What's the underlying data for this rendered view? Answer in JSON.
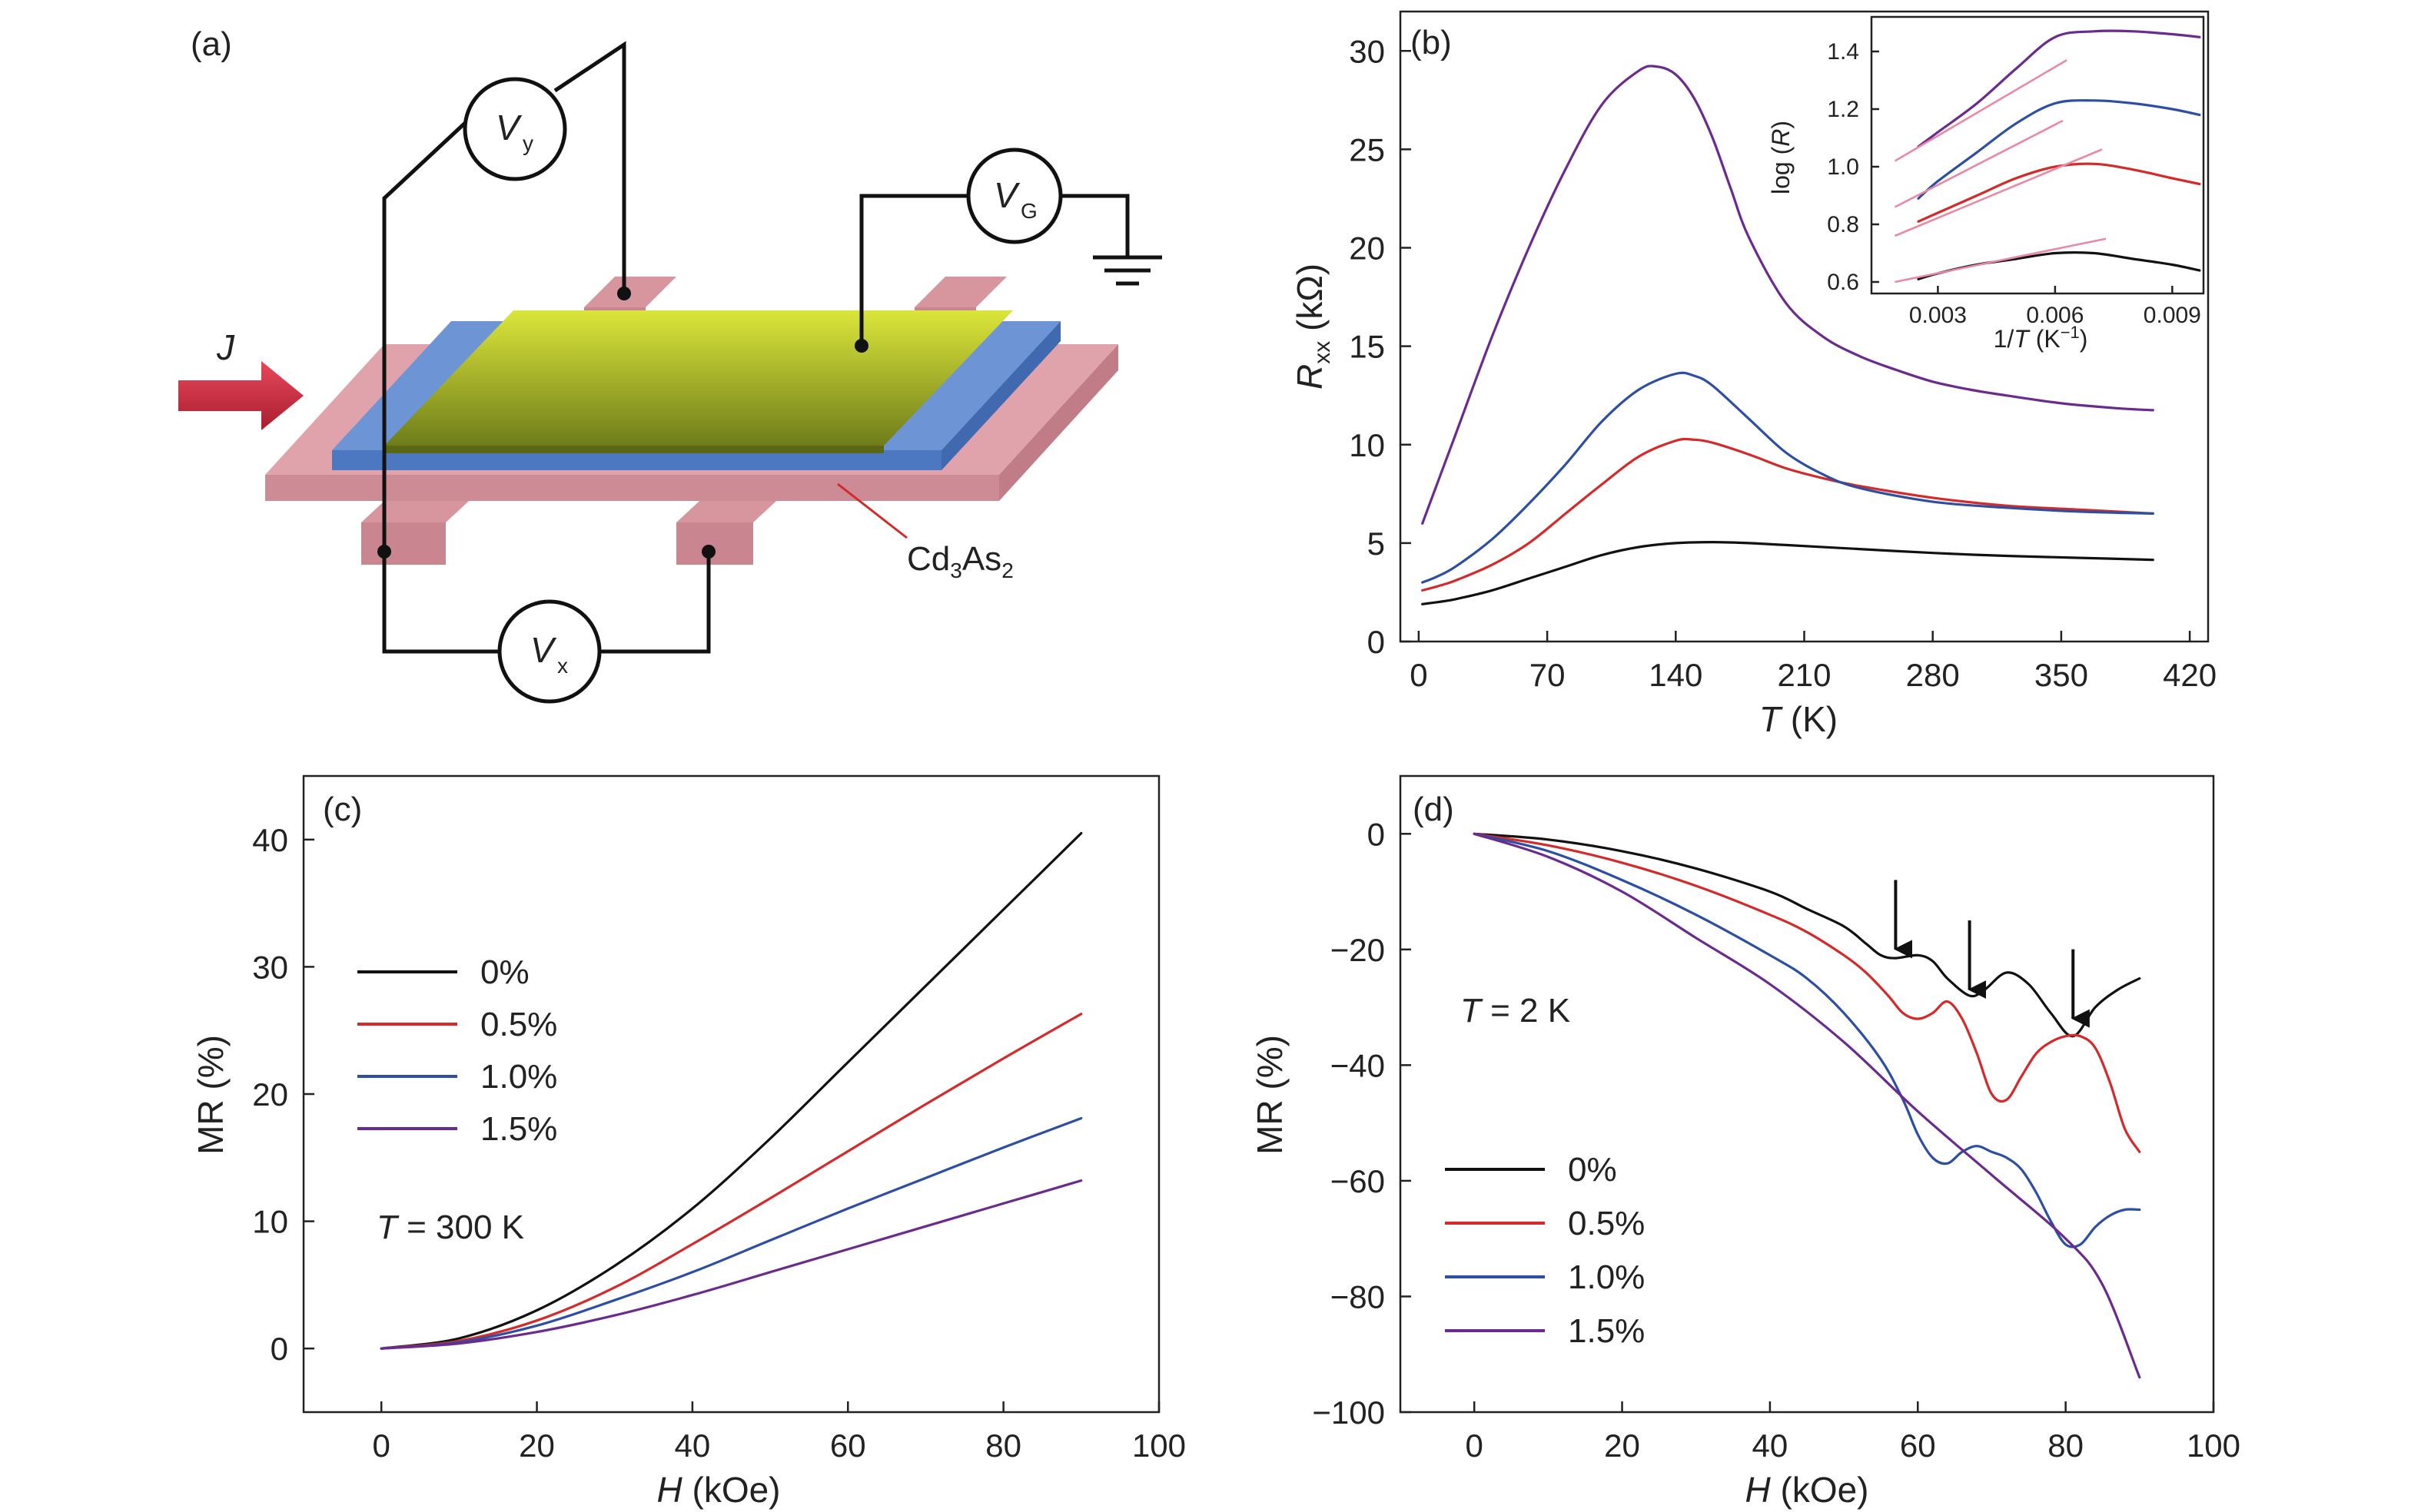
{
  "colors": {
    "s0": "#111111",
    "s05": "#d42a2a",
    "s10": "#2d4fa3",
    "s15": "#6a2a8e",
    "fit": "#e98aa5"
  },
  "schematic": {
    "label": "(a)",
    "current": {
      "name": "J"
    },
    "vy": {
      "name": "V",
      "sub": "y"
    },
    "vg": {
      "name": "V",
      "sub": "G"
    },
    "vx": {
      "name": "V",
      "sub": "x"
    },
    "material": {
      "a": "Cd",
      "n1": "3",
      "b": "As",
      "n2": "2"
    }
  },
  "chart_data": [
    {
      "panel": "(b)",
      "type": "line",
      "xlabel": {
        "sym": "T",
        "unit": " (K)"
      },
      "ylabel": {
        "sym": "R",
        "sub": "xx",
        "unit": " (kΩ)"
      },
      "xlim": [
        -10,
        430
      ],
      "ylim": [
        0,
        32
      ],
      "xticks": [
        0,
        70,
        140,
        210,
        280,
        350,
        420
      ],
      "yticks": [
        0,
        5,
        10,
        15,
        20,
        25,
        30
      ],
      "series": [
        {
          "key": "s0",
          "x": [
            2,
            10,
            20,
            40,
            60,
            80,
            100,
            120,
            140,
            160,
            180,
            200,
            240,
            280,
            320,
            360,
            400
          ],
          "y": [
            1.9,
            2.0,
            2.15,
            2.6,
            3.2,
            3.8,
            4.4,
            4.8,
            5.0,
            5.05,
            5.0,
            4.9,
            4.7,
            4.5,
            4.35,
            4.25,
            4.15
          ]
        },
        {
          "key": "s05",
          "x": [
            2,
            10,
            20,
            40,
            60,
            80,
            100,
            120,
            140,
            150,
            160,
            180,
            200,
            220,
            240,
            280,
            320,
            360,
            400
          ],
          "y": [
            2.6,
            2.8,
            3.1,
            3.9,
            5.0,
            6.5,
            8.0,
            9.4,
            10.2,
            10.25,
            10.1,
            9.5,
            8.8,
            8.3,
            7.9,
            7.3,
            6.9,
            6.7,
            6.5
          ]
        },
        {
          "key": "s10",
          "x": [
            2,
            10,
            20,
            40,
            60,
            80,
            100,
            120,
            140,
            150,
            160,
            180,
            200,
            220,
            240,
            280,
            320,
            360,
            400
          ],
          "y": [
            3.0,
            3.3,
            3.8,
            5.2,
            7.0,
            9.0,
            11.2,
            12.8,
            13.6,
            13.5,
            13.0,
            11.3,
            9.6,
            8.5,
            7.8,
            7.1,
            6.8,
            6.6,
            6.5
          ]
        },
        {
          "key": "s15",
          "x": [
            2,
            10,
            20,
            40,
            60,
            80,
            100,
            120,
            130,
            140,
            150,
            160,
            170,
            180,
            200,
            220,
            240,
            260,
            280,
            300,
            320,
            350,
            380,
            400
          ],
          "y": [
            6.0,
            8.0,
            10.5,
            15.5,
            20.0,
            24.0,
            27.3,
            29.0,
            29.2,
            28.8,
            27.6,
            25.6,
            23.0,
            20.5,
            17.2,
            15.5,
            14.5,
            13.8,
            13.2,
            12.8,
            12.5,
            12.1,
            11.85,
            11.75
          ]
        }
      ],
      "inset": {
        "xlabel": {
          "pre": "1/",
          "sym": "T",
          "unit": " (K",
          "sup": "−1",
          "post": ")"
        },
        "ylabel": {
          "pre": "log (",
          "sym": "R",
          "post": ")"
        },
        "xlim": [
          0.0013,
          0.0098
        ],
        "ylim": [
          0.56,
          1.52
        ],
        "xticks": [
          "0.003",
          "0.006",
          "0.009"
        ],
        "xtickvals": [
          0.003,
          0.006,
          0.009
        ],
        "yticks": [
          "0.6",
          "0.8",
          "1.0",
          "1.2",
          "1.4"
        ],
        "ytickvals": [
          0.6,
          0.8,
          1.0,
          1.2,
          1.4
        ],
        "series": [
          {
            "key": "s0",
            "x": [
              0.0025,
              0.003,
              0.004,
              0.005,
              0.006,
              0.007,
              0.008,
              0.009,
              0.0097
            ],
            "y": [
              0.61,
              0.63,
              0.66,
              0.68,
              0.7,
              0.7,
              0.68,
              0.66,
              0.64
            ]
          },
          {
            "key": "s05",
            "x": [
              0.0025,
              0.003,
              0.004,
              0.005,
              0.006,
              0.007,
              0.008,
              0.009,
              0.0097
            ],
            "y": [
              0.81,
              0.84,
              0.9,
              0.96,
              1.0,
              1.01,
              0.99,
              0.96,
              0.94
            ]
          },
          {
            "key": "s10",
            "x": [
              0.0025,
              0.003,
              0.004,
              0.005,
              0.006,
              0.007,
              0.008,
              0.009,
              0.0097
            ],
            "y": [
              0.89,
              0.95,
              1.05,
              1.15,
              1.22,
              1.23,
              1.22,
              1.2,
              1.18
            ]
          },
          {
            "key": "s15",
            "x": [
              0.0025,
              0.003,
              0.004,
              0.005,
              0.006,
              0.007,
              0.008,
              0.009,
              0.0097
            ],
            "y": [
              1.07,
              1.12,
              1.22,
              1.34,
              1.45,
              1.47,
              1.47,
              1.46,
              1.45
            ]
          }
        ],
        "fits": [
          {
            "x": [
              0.0019,
              0.0073
            ],
            "y": [
              0.6,
              0.75
            ]
          },
          {
            "x": [
              0.0019,
              0.0072
            ],
            "y": [
              0.76,
              1.06
            ]
          },
          {
            "x": [
              0.0019,
              0.0062
            ],
            "y": [
              0.86,
              1.16
            ]
          },
          {
            "x": [
              0.0019,
              0.0063
            ],
            "y": [
              1.02,
              1.37
            ]
          }
        ]
      }
    },
    {
      "panel": "(c)",
      "type": "line",
      "xlabel": {
        "sym": "H",
        "unit": " (kOe)"
      },
      "ylabel": {
        "text": "MR (%)"
      },
      "annotation": {
        "sym": "T",
        "rest": " = 300 K"
      },
      "xlim": [
        -10,
        100
      ],
      "ylim": [
        -5,
        45
      ],
      "xticks": [
        0,
        20,
        40,
        60,
        80,
        100
      ],
      "yticks": [
        0,
        10,
        20,
        30,
        40
      ],
      "legend": [
        "0%",
        "0.5%",
        "1.0%",
        "1.5%"
      ],
      "series": [
        {
          "key": "s0",
          "x": [
            0,
            10,
            20,
            30,
            40,
            50,
            60,
            70,
            80,
            90
          ],
          "y": [
            0,
            0.8,
            3.0,
            6.5,
            11.0,
            16.5,
            22.5,
            28.5,
            34.5,
            40.5
          ]
        },
        {
          "key": "s05",
          "x": [
            0,
            10,
            20,
            30,
            40,
            50,
            60,
            70,
            80,
            90
          ],
          "y": [
            0,
            0.6,
            2.2,
            4.8,
            8.2,
            11.8,
            15.5,
            19.2,
            22.8,
            26.3
          ]
        },
        {
          "key": "s10",
          "x": [
            0,
            10,
            20,
            30,
            40,
            50,
            60,
            70,
            80,
            90
          ],
          "y": [
            0,
            0.5,
            1.8,
            3.8,
            6.0,
            8.5,
            11.0,
            13.4,
            15.8,
            18.1
          ]
        },
        {
          "key": "s15",
          "x": [
            0,
            10,
            20,
            30,
            40,
            50,
            60,
            70,
            80,
            90
          ],
          "y": [
            0,
            0.4,
            1.3,
            2.6,
            4.2,
            6.0,
            7.8,
            9.6,
            11.4,
            13.2
          ]
        }
      ]
    },
    {
      "panel": "(d)",
      "type": "line",
      "xlabel": {
        "sym": "H",
        "unit": " (kOe)"
      },
      "ylabel": {
        "text": "MR (%)"
      },
      "annotation": {
        "sym": "T",
        "rest": " = 2 K"
      },
      "xlim": [
        -10,
        100
      ],
      "ylim": [
        -100,
        10
      ],
      "xticks": [
        0,
        20,
        40,
        60,
        80,
        100
      ],
      "yticks": [
        0,
        -20,
        -40,
        -60,
        -80,
        -100
      ],
      "legend": [
        "0%",
        "0.5%",
        "1.0%",
        "1.5%"
      ],
      "arrows": [
        {
          "x": 57,
          "y": -21
        },
        {
          "x": 67,
          "y": -28
        },
        {
          "x": 81,
          "y": -33
        }
      ],
      "series": [
        {
          "key": "s0",
          "x": [
            0,
            10,
            20,
            30,
            40,
            45,
            50,
            53,
            55,
            57,
            60,
            62,
            64,
            67,
            69,
            72,
            75,
            78,
            81,
            84,
            87,
            90
          ],
          "y": [
            0,
            -1,
            -3,
            -6,
            -10,
            -13,
            -16,
            -19,
            -21,
            -21.5,
            -21,
            -22,
            -25,
            -28,
            -27,
            -24,
            -26,
            -31,
            -35,
            -30,
            -27,
            -25
          ]
        },
        {
          "key": "s05",
          "x": [
            0,
            10,
            20,
            30,
            40,
            45,
            50,
            53,
            56,
            58,
            60,
            62,
            64,
            66,
            68,
            70,
            72,
            74,
            76,
            78,
            80,
            82,
            84,
            86,
            88,
            90
          ],
          "y": [
            0,
            -2,
            -5,
            -9,
            -14,
            -17,
            -21,
            -24,
            -28,
            -31,
            -32,
            -31,
            -29,
            -32,
            -38,
            -45,
            -46,
            -42,
            -38,
            -36,
            -35,
            -35,
            -37,
            -43,
            -51,
            -55
          ]
        },
        {
          "key": "s10",
          "x": [
            0,
            10,
            20,
            30,
            40,
            45,
            50,
            55,
            58,
            60,
            62,
            64,
            66,
            68,
            70,
            72,
            74,
            76,
            78,
            80,
            82,
            84,
            86,
            88,
            90
          ],
          "y": [
            0,
            -3,
            -8,
            -14,
            -21,
            -25,
            -31,
            -39,
            -46,
            -52,
            -56,
            -57,
            -55,
            -54,
            -55,
            -56,
            -58,
            -62,
            -67,
            -71,
            -71,
            -68,
            -66,
            -65,
            -65
          ]
        },
        {
          "key": "s15",
          "x": [
            0,
            10,
            20,
            30,
            40,
            50,
            60,
            70,
            80,
            85,
            90
          ],
          "y": [
            0,
            -4,
            -10,
            -18,
            -26,
            -36,
            -48,
            -59,
            -70,
            -78,
            -94
          ]
        }
      ]
    }
  ]
}
